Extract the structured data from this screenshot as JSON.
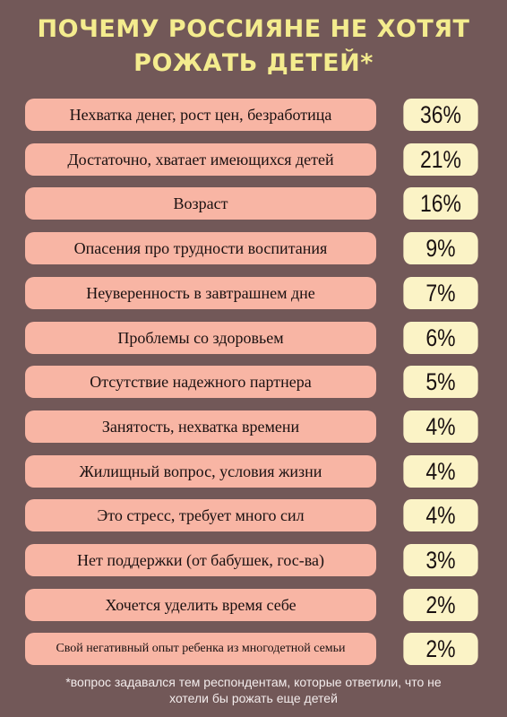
{
  "chart_data": {
    "type": "table",
    "title_lines": [
      "ПОЧЕМУ РОССИЯНЕ НЕ ХОТЯТ",
      "РОЖАТЬ ДЕТЕЙ*"
    ],
    "rows": [
      {
        "label": "Нехватка денег, рост цен, безработица",
        "value": 36,
        "display": "36%"
      },
      {
        "label": "Достаточно, хватает имеющихся детей",
        "value": 21,
        "display": "21%"
      },
      {
        "label": "Возраст",
        "value": 16,
        "display": "16%"
      },
      {
        "label": "Опасения про трудности воспитания",
        "value": 9,
        "display": "9%"
      },
      {
        "label": "Неуверенность в завтрашнем дне",
        "value": 7,
        "display": "7%"
      },
      {
        "label": "Проблемы со здоровьем",
        "value": 6,
        "display": "6%"
      },
      {
        "label": "Отсутствие надежного партнера",
        "value": 5,
        "display": "5%"
      },
      {
        "label": "Занятость, нехватка времени",
        "value": 4,
        "display": "4%"
      },
      {
        "label": "Жилищный вопрос, условия жизни",
        "value": 4,
        "display": "4%"
      },
      {
        "label": "Это стресс, требует много сил",
        "value": 4,
        "display": "4%"
      },
      {
        "label": "Нет поддержки (от бабушек, гос-ва)",
        "value": 3,
        "display": "3%"
      },
      {
        "label": "Хочется уделить время себе",
        "value": 2,
        "display": "2%"
      },
      {
        "label": "Свой негативный опыт ребенка из многодетной семьи",
        "value": 2,
        "display": "2%"
      }
    ],
    "footnote_lines": [
      "*вопрос задавался тем респондентам, которые ответили, что не",
      "хотели бы рожать еще детей"
    ]
  },
  "colors": {
    "background": "#725858",
    "title": "#f4ec8e",
    "reason_box": "#f8b5a4",
    "value_box": "#fbf3c6"
  }
}
